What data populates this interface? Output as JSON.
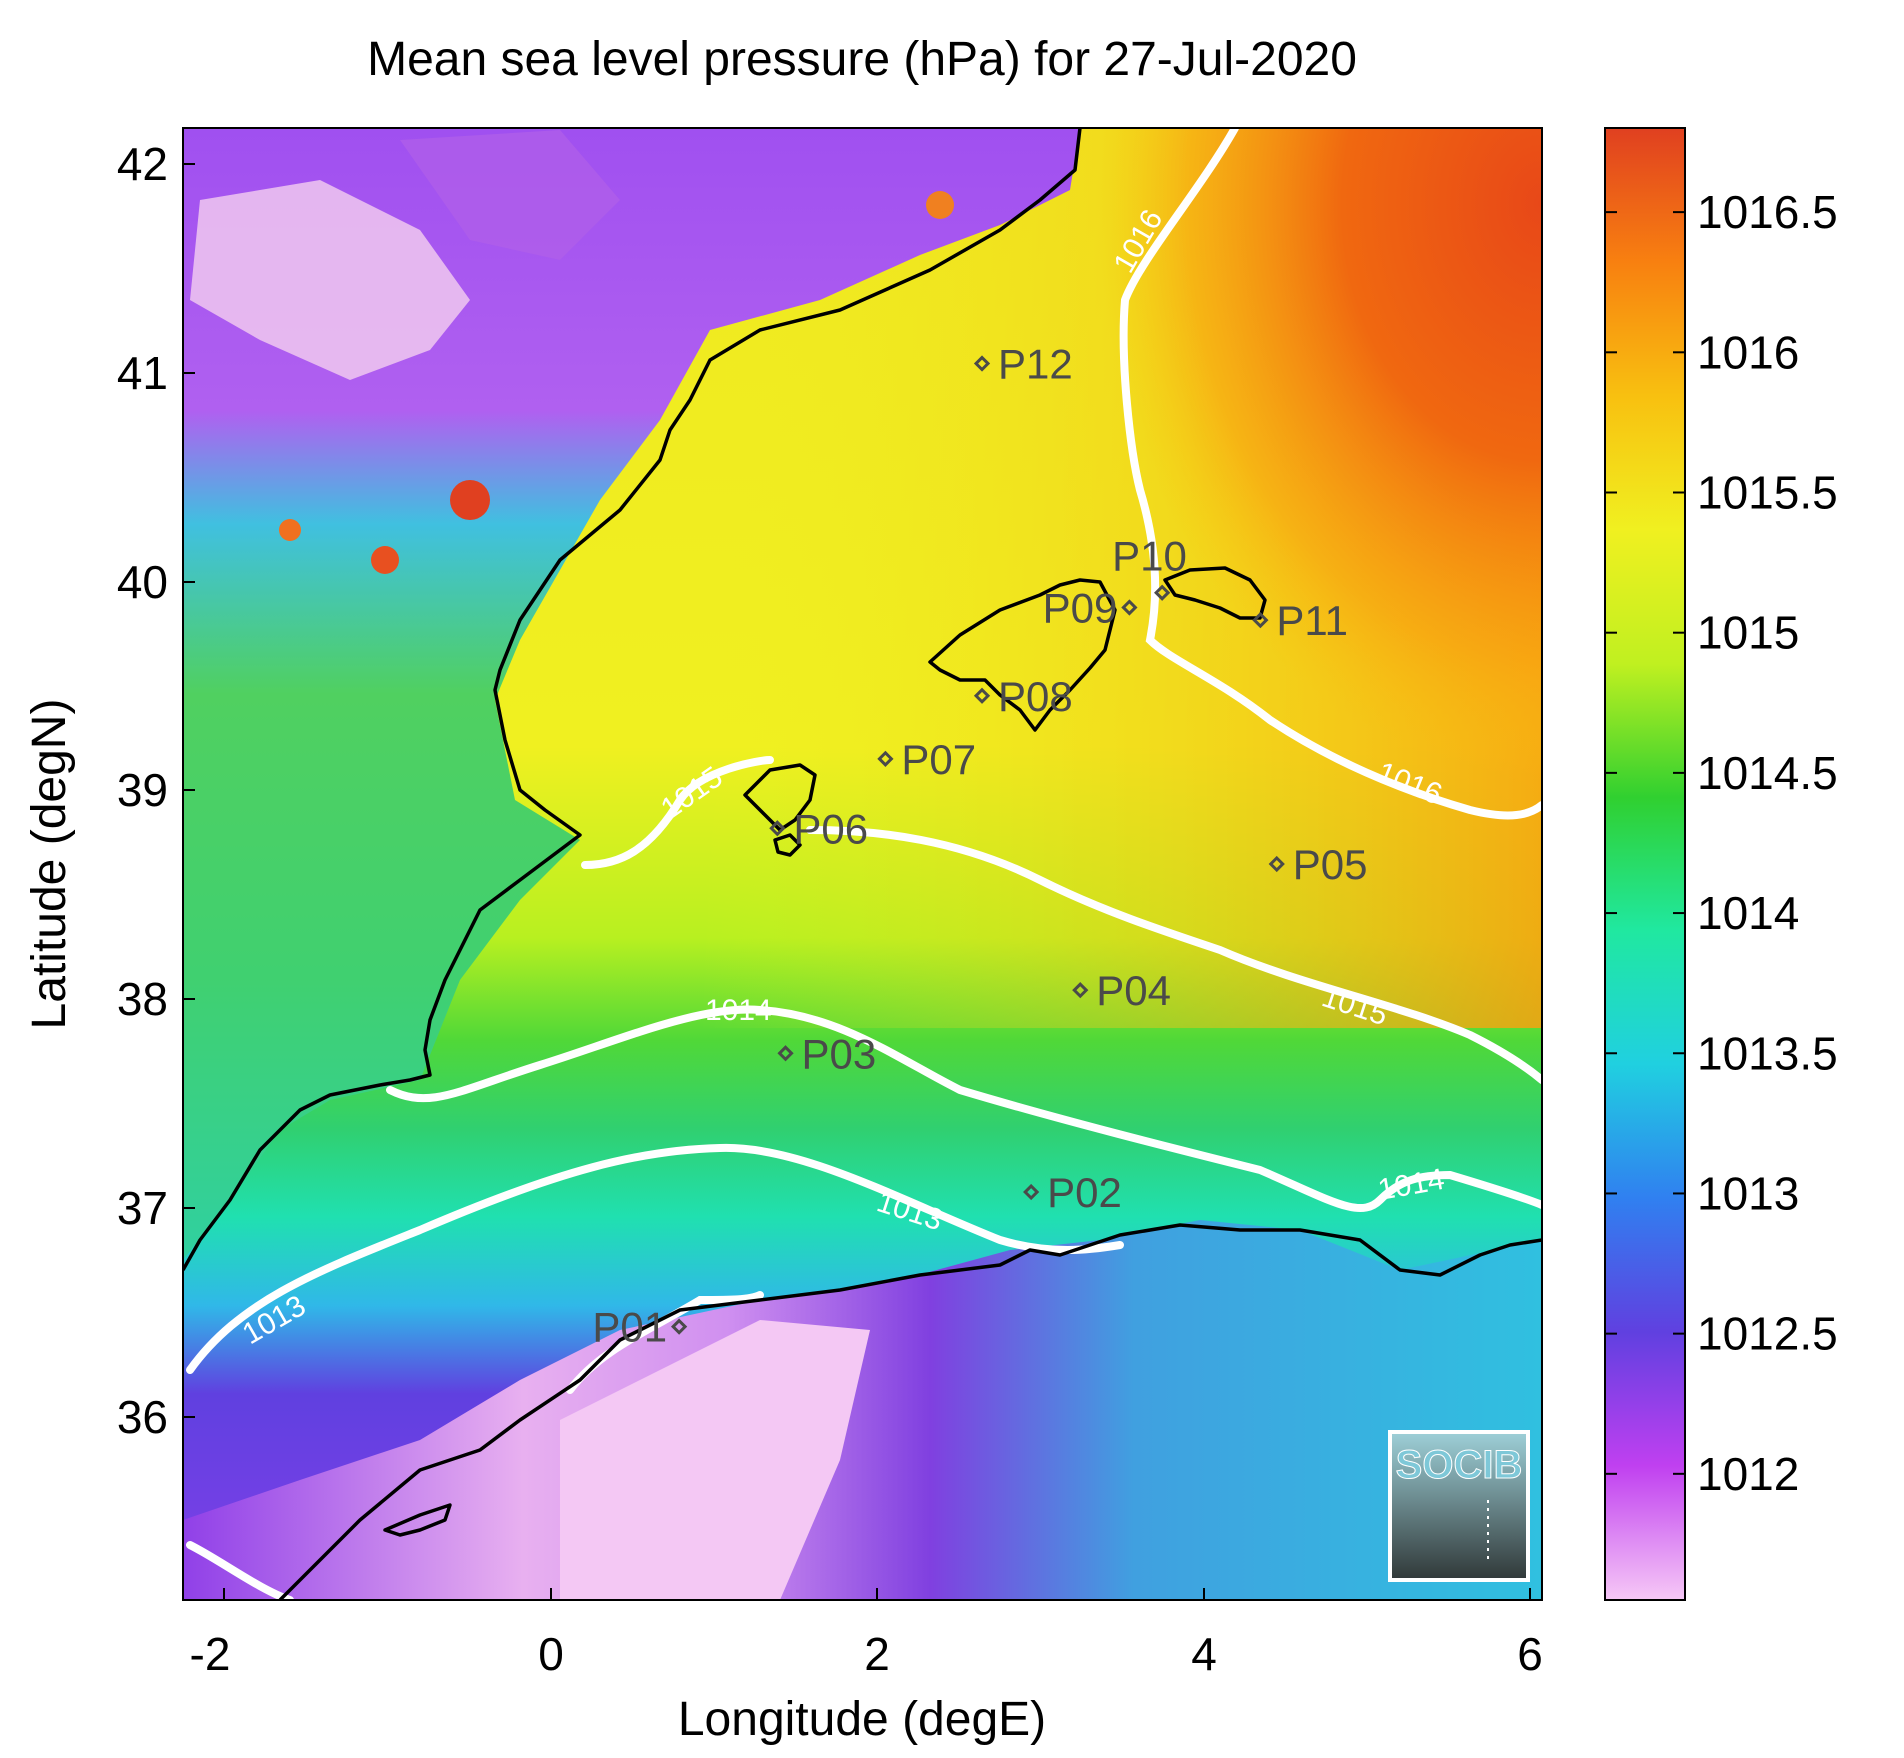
{
  "title": "Mean sea level pressure (hPa) for 27-Jul-2020",
  "xlabel": "Longitude (degE)",
  "ylabel": "Latitude (degN)",
  "x_ticks": [
    "-2",
    "0",
    "2",
    "4",
    "6"
  ],
  "y_ticks": [
    "42",
    "41",
    "40",
    "39",
    "38",
    "37",
    "36"
  ],
  "colorbar": {
    "ticks": [
      "1016.5",
      "1016",
      "1015.5",
      "1015",
      "1014.5",
      "1014",
      "1013.5",
      "1013",
      "1012.5",
      "1012"
    ],
    "range": [
      1011.55,
      1016.8
    ],
    "colors": [
      "#f6c8f6",
      "#c040f0",
      "#6040e0",
      "#3080f0",
      "#20d0e0",
      "#20e8a0",
      "#30d030",
      "#c0f020",
      "#f0f020",
      "#f8c010",
      "#f88010",
      "#e04020"
    ]
  },
  "map": {
    "lon_range": [
      -2.2,
      6.1
    ],
    "lat_range": [
      35.2,
      42.2
    ],
    "stations": [
      {
        "id": "P01",
        "lon": 0.83,
        "lat": 36.5
      },
      {
        "id": "P02",
        "lon": 2.98,
        "lat": 37.14
      },
      {
        "id": "P03",
        "lon": 1.48,
        "lat": 37.8
      },
      {
        "id": "P04",
        "lon": 3.28,
        "lat": 38.1
      },
      {
        "id": "P05",
        "lon": 4.48,
        "lat": 38.7
      },
      {
        "id": "P06",
        "lon": 1.43,
        "lat": 38.87
      },
      {
        "id": "P07",
        "lon": 2.09,
        "lat": 39.2
      },
      {
        "id": "P08",
        "lon": 2.68,
        "lat": 39.5
      },
      {
        "id": "P09",
        "lon": 3.58,
        "lat": 39.92
      },
      {
        "id": "P10",
        "lon": 3.78,
        "lat": 39.99
      },
      {
        "id": "P11",
        "lon": 4.38,
        "lat": 39.86
      },
      {
        "id": "P12",
        "lon": 2.68,
        "lat": 41.08
      }
    ],
    "isobar_labels": [
      "1013",
      "1013",
      "1014",
      "1014",
      "1015",
      "1015",
      "1016",
      "1016"
    ]
  },
  "logo": "SOCIB"
}
